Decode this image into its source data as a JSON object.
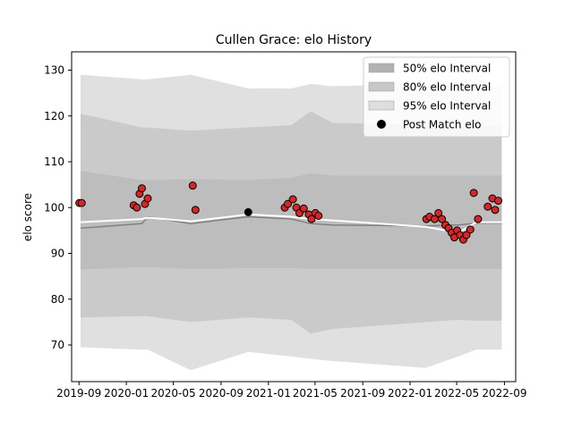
{
  "chart_data": {
    "type": "line",
    "title": "Cullen Grace: elo History",
    "xlabel": "",
    "ylabel": "elo score",
    "xlim": [
      "2019-08-13",
      "2022-09-30"
    ],
    "ylim": [
      62,
      134
    ],
    "xticks": [
      "2019-09",
      "2020-01",
      "2020-05",
      "2020-09",
      "2021-01",
      "2021-05",
      "2021-09",
      "2022-01",
      "2022-05",
      "2022-09"
    ],
    "yticks": [
      70,
      80,
      90,
      100,
      110,
      120,
      130
    ],
    "grid": false,
    "legend_position": "top-right",
    "legend": [
      {
        "label": "50% elo Interval",
        "kind": "patch",
        "color": "#b2b2b2"
      },
      {
        "label": "80% elo Interval",
        "kind": "patch",
        "color": "#c8c8c8"
      },
      {
        "label": "95% elo Interval",
        "kind": "patch",
        "color": "#dedede"
      },
      {
        "label": "Post Match elo",
        "kind": "marker",
        "color": "#000000"
      }
    ],
    "colors": {
      "band_95": "#e0e0e0",
      "band_80": "#cacaca",
      "band_50": "#bdbdbd",
      "median_line": "#808080",
      "mean_line": "#ffffff",
      "match_fill": "#d62728",
      "match_edge": "#000000",
      "highlight_fill": "#000000"
    },
    "intervals": {
      "x": [
        "2019-09-05",
        "2020-02-10",
        "2020-02-25",
        "2020-06-15",
        "2020-11-10",
        "2021-03-01",
        "2021-04-20",
        "2021-06-15",
        "2022-02-10",
        "2022-05-05",
        "2022-06-20",
        "2022-08-25"
      ],
      "mean": [
        96.8,
        97.5,
        97.8,
        97.0,
        98.5,
        98.0,
        97.5,
        97.2,
        95.8,
        94.5,
        96.8,
        96.8
      ],
      "median": [
        95.5,
        96.5,
        98.0,
        96.5,
        98.0,
        97.5,
        96.5,
        96.2,
        96.0,
        96.2,
        96.6,
        96.6
      ],
      "p25": [
        86.5,
        87.0,
        87.0,
        86.6,
        86.8,
        86.8,
        86.6,
        86.6,
        86.6,
        86.6,
        86.6,
        86.6
      ],
      "p75": [
        108.0,
        106.0,
        106.0,
        106.2,
        106.0,
        106.5,
        107.5,
        107.0,
        107.0,
        107.0,
        107.0,
        107.0
      ],
      "p10": [
        76.0,
        76.3,
        76.3,
        75.0,
        76.0,
        75.5,
        72.5,
        73.5,
        75.0,
        75.5,
        75.3,
        75.3
      ],
      "p90": [
        120.5,
        117.5,
        117.5,
        116.8,
        117.5,
        118.0,
        121.0,
        118.5,
        118.0,
        117.5,
        117.7,
        117.7
      ],
      "p2_5": [
        69.5,
        69.0,
        69.0,
        64.5,
        68.5,
        67.5,
        67.0,
        66.5,
        65.0,
        67.5,
        69.0,
        69.0
      ],
      "p97_5": [
        129.0,
        128.0,
        128.0,
        129.0,
        126.0,
        126.0,
        127.0,
        126.5,
        127.0,
        126.5,
        126.5,
        126.5
      ]
    },
    "series": [
      {
        "name": "Post Match elo",
        "points": [
          {
            "x": "2019-09-02",
            "y": 101.0
          },
          {
            "x": "2019-09-08",
            "y": 101.0
          },
          {
            "x": "2020-01-20",
            "y": 100.5
          },
          {
            "x": "2020-01-28",
            "y": 100.0
          },
          {
            "x": "2020-02-04",
            "y": 103.0
          },
          {
            "x": "2020-02-10",
            "y": 104.2
          },
          {
            "x": "2020-02-18",
            "y": 100.8
          },
          {
            "x": "2020-02-25",
            "y": 102.0
          },
          {
            "x": "2020-06-20",
            "y": 104.8
          },
          {
            "x": "2020-06-27",
            "y": 99.5
          },
          {
            "x": "2020-11-10",
            "y": 99.0,
            "highlight": true
          },
          {
            "x": "2021-02-12",
            "y": 100.0
          },
          {
            "x": "2021-02-20",
            "y": 100.8
          },
          {
            "x": "2021-03-05",
            "y": 101.8
          },
          {
            "x": "2021-03-14",
            "y": 100.0
          },
          {
            "x": "2021-03-22",
            "y": 98.8
          },
          {
            "x": "2021-04-02",
            "y": 99.8
          },
          {
            "x": "2021-04-15",
            "y": 98.5
          },
          {
            "x": "2021-04-22",
            "y": 97.5
          },
          {
            "x": "2021-05-02",
            "y": 98.8
          },
          {
            "x": "2021-05-10",
            "y": 98.2
          },
          {
            "x": "2022-02-12",
            "y": 97.5
          },
          {
            "x": "2022-02-20",
            "y": 98.0
          },
          {
            "x": "2022-03-05",
            "y": 97.5
          },
          {
            "x": "2022-03-15",
            "y": 98.8
          },
          {
            "x": "2022-03-24",
            "y": 97.5
          },
          {
            "x": "2022-04-02",
            "y": 96.2
          },
          {
            "x": "2022-04-10",
            "y": 95.5
          },
          {
            "x": "2022-04-18",
            "y": 94.5
          },
          {
            "x": "2022-04-25",
            "y": 93.5
          },
          {
            "x": "2022-05-02",
            "y": 95.0
          },
          {
            "x": "2022-05-10",
            "y": 94.0
          },
          {
            "x": "2022-05-18",
            "y": 93.0
          },
          {
            "x": "2022-05-26",
            "y": 94.0
          },
          {
            "x": "2022-06-05",
            "y": 95.2
          },
          {
            "x": "2022-06-14",
            "y": 103.2
          },
          {
            "x": "2022-06-25",
            "y": 97.5
          },
          {
            "x": "2022-07-20",
            "y": 100.2
          },
          {
            "x": "2022-08-01",
            "y": 102.0
          },
          {
            "x": "2022-08-08",
            "y": 99.5
          },
          {
            "x": "2022-08-16",
            "y": 101.5
          }
        ]
      }
    ]
  }
}
